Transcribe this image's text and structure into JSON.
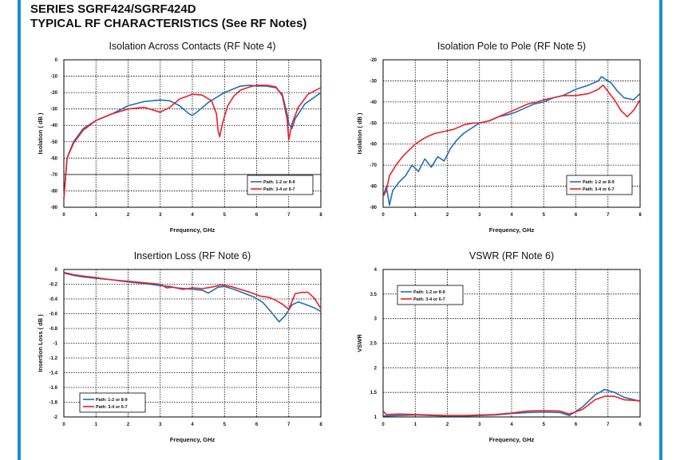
{
  "header": {
    "line1": "SERIES SGRF424/SGRF424D",
    "line2": "TYPICAL RF CHARACTERISTICS (See RF Notes)"
  },
  "colors": {
    "accent_bar": "#1a8fd4",
    "series_a": "#1f6fb3",
    "series_b": "#e8202a"
  },
  "chart_data": [
    {
      "type": "line",
      "title": "Isolation Across Contacts (RF Note 4)",
      "xlabel": "Frequency, GHz",
      "ylabel": "Isolation ( dB )",
      "xlim": [
        0,
        8
      ],
      "ylim": [
        -90,
        0
      ],
      "xticks": [
        "0",
        "1",
        "2",
        "3",
        "4",
        "5",
        "6",
        "7",
        "8"
      ],
      "yticks": [
        "0",
        "-10",
        "-20",
        "-30",
        "-40",
        "-50",
        "-60",
        "-70",
        "-80",
        "-90"
      ],
      "grid": true,
      "legend": "bottom-right",
      "series": [
        {
          "name": "Path: 1-2 or 8-9",
          "x": [
            0,
            0.1,
            0.3,
            0.6,
            1,
            1.5,
            2,
            2.5,
            3,
            3.3,
            3.6,
            3.9,
            4.0,
            4.2,
            4.5,
            5,
            5.5,
            5.8,
            6,
            6.3,
            6.6,
            6.8,
            6.95,
            7.0,
            7.1,
            7.2,
            7.5,
            8
          ],
          "y": [
            -85,
            -60,
            -50,
            -42,
            -37,
            -33,
            -28,
            -25.5,
            -24.5,
            -25,
            -28,
            -33,
            -34,
            -31,
            -26,
            -20,
            -16,
            -15.5,
            -16,
            -16,
            -17,
            -21,
            -33,
            -39,
            -42,
            -36,
            -27,
            -20
          ]
        },
        {
          "name": "Path:  3-4 or 6-7",
          "x": [
            0,
            0.1,
            0.3,
            0.6,
            1,
            1.5,
            2,
            2.5,
            3,
            3.3,
            3.6,
            4,
            4.3,
            4.6,
            4.75,
            4.8,
            4.85,
            4.95,
            5.1,
            5.3,
            5.5,
            5.8,
            6,
            6.3,
            6.6,
            6.8,
            6.95,
            7.0,
            7.1,
            7.3,
            7.6,
            8
          ],
          "y": [
            -85,
            -60,
            -51,
            -43,
            -37,
            -33,
            -30,
            -29,
            -32,
            -29,
            -24,
            -21,
            -21.5,
            -25,
            -33,
            -43,
            -47,
            -38,
            -28,
            -22,
            -18.5,
            -16.5,
            -15.5,
            -15.5,
            -16.5,
            -22,
            -36,
            -49,
            -39,
            -29,
            -21,
            -17
          ]
        }
      ]
    },
    {
      "type": "line",
      "title": "Isolation Pole to Pole (RF Note 5)",
      "xlabel": "Frequency, GHz",
      "ylabel": "Isolation ( dB )",
      "xlim": [
        0,
        8
      ],
      "ylim": [
        -90,
        -20
      ],
      "xticks": [
        "0",
        "1",
        "2",
        "3",
        "4",
        "5",
        "6",
        "7",
        "8"
      ],
      "yticks": [
        "-20",
        "-30",
        "-40",
        "-50",
        "-60",
        "-70",
        "-80",
        "-90"
      ],
      "grid": true,
      "legend": "bottom-right",
      "series": [
        {
          "name": "Path: 1-2 or 8-9",
          "x": [
            0,
            0.1,
            0.2,
            0.3,
            0.5,
            0.7,
            0.9,
            1.1,
            1.3,
            1.5,
            1.7,
            1.9,
            2.1,
            2.3,
            2.5,
            2.8,
            3,
            3.3,
            3.6,
            3.9,
            4.1,
            4.4,
            4.7,
            5,
            5.3,
            5.6,
            6,
            6.4,
            6.7,
            6.8,
            6.9,
            7.1,
            7.3,
            7.5,
            7.8,
            8
          ],
          "y": [
            -85,
            -80,
            -89,
            -82,
            -78,
            -75,
            -70,
            -73,
            -67,
            -71,
            -66,
            -68,
            -62,
            -58,
            -55,
            -52,
            -50,
            -49,
            -47,
            -46,
            -45,
            -43,
            -41,
            -40,
            -38,
            -37,
            -34,
            -32,
            -30,
            -28,
            -29,
            -31,
            -35,
            -38,
            -39,
            -36
          ]
        },
        {
          "name": "Path:  3-4 or 6-7",
          "x": [
            0,
            0.1,
            0.2,
            0.4,
            0.6,
            0.8,
            1,
            1.3,
            1.6,
            1.9,
            2.2,
            2.5,
            2.8,
            3,
            3.3,
            3.6,
            3.9,
            4.2,
            4.5,
            4.8,
            5,
            5.3,
            5.6,
            6,
            6.4,
            6.7,
            6.85,
            7,
            7.2,
            7.4,
            7.6,
            7.8,
            8
          ],
          "y": [
            -85,
            -82,
            -75,
            -70,
            -66,
            -63,
            -60,
            -57,
            -55,
            -54,
            -53,
            -51,
            -50,
            -50,
            -49,
            -47,
            -45,
            -43,
            -41,
            -40,
            -39,
            -38,
            -37,
            -37,
            -36,
            -34,
            -32,
            -35,
            -39,
            -44,
            -47,
            -44,
            -39
          ]
        }
      ]
    },
    {
      "type": "line",
      "title": "Insertion Loss (RF Note 6)",
      "xlabel": "Frequency, GHz",
      "ylabel": "Insertion Loss ( dB )",
      "xlim": [
        0,
        8
      ],
      "ylim": [
        -2,
        0
      ],
      "xticks": [
        "0",
        "1",
        "2",
        "3",
        "4",
        "5",
        "6",
        "7",
        "8"
      ],
      "yticks": [
        "0",
        "-0.2",
        "-0.4",
        "-0.6",
        "-0.8",
        "-1",
        "-1.2",
        "-1.4",
        "-1.6",
        "-1.8",
        "-2"
      ],
      "grid": true,
      "legend": "bottom-left",
      "series": [
        {
          "name": "Path: 1-2 or 8-9",
          "x": [
            0,
            0.3,
            0.6,
            1,
            1.5,
            2,
            2.5,
            3,
            3.3,
            3.5,
            3.8,
            4,
            4.3,
            4.5,
            4.8,
            5,
            5.3,
            5.6,
            5.9,
            6.2,
            6.5,
            6.7,
            6.9,
            7.1,
            7.3,
            7.5,
            7.8,
            8
          ],
          "y": [
            -0.05,
            -0.08,
            -0.1,
            -0.12,
            -0.14,
            -0.17,
            -0.19,
            -0.22,
            -0.23,
            -0.25,
            -0.26,
            -0.27,
            -0.28,
            -0.32,
            -0.24,
            -0.23,
            -0.27,
            -0.32,
            -0.37,
            -0.45,
            -0.6,
            -0.71,
            -0.62,
            -0.48,
            -0.44,
            -0.47,
            -0.52,
            -0.57
          ]
        },
        {
          "name": "Path:  3-4 or 6-7",
          "x": [
            0,
            0.3,
            0.6,
            1,
            1.5,
            2,
            2.5,
            3,
            3.2,
            3.4,
            3.7,
            4,
            4.3,
            4.6,
            4.9,
            5.2,
            5.5,
            5.8,
            6.1,
            6.4,
            6.6,
            6.8,
            7,
            7.2,
            7.4,
            7.6,
            7.8,
            8
          ],
          "y": [
            -0.04,
            -0.07,
            -0.09,
            -0.11,
            -0.14,
            -0.16,
            -0.18,
            -0.2,
            -0.25,
            -0.24,
            -0.27,
            -0.25,
            -0.26,
            -0.24,
            -0.21,
            -0.23,
            -0.27,
            -0.31,
            -0.36,
            -0.38,
            -0.42,
            -0.47,
            -0.54,
            -0.33,
            -0.31,
            -0.31,
            -0.39,
            -0.53
          ]
        }
      ]
    },
    {
      "type": "line",
      "title": "VSWR (RF Note 6)",
      "xlabel": "Frequency, GHz",
      "ylabel": "VSWR",
      "xlim": [
        0,
        8
      ],
      "ylim": [
        1,
        4
      ],
      "xticks": [
        "0",
        "1",
        "2",
        "3",
        "4",
        "5",
        "6",
        "7",
        "8"
      ],
      "yticks": [
        "4",
        "3.5",
        "3",
        "2.5",
        "2",
        "1.5",
        "1"
      ],
      "grid": true,
      "legend": "top-left",
      "series": [
        {
          "name": "Path: 1-2 or 8-9",
          "x": [
            0,
            0.5,
            1,
            1.5,
            2,
            2.5,
            3,
            3.5,
            4,
            4.5,
            5,
            5.5,
            5.8,
            6.2,
            6.6,
            6.9,
            7.2,
            7.5,
            8
          ],
          "y": [
            1.02,
            1.03,
            1.04,
            1.03,
            1.02,
            1.02,
            1.03,
            1.04,
            1.07,
            1.09,
            1.1,
            1.09,
            1.03,
            1.2,
            1.45,
            1.56,
            1.5,
            1.4,
            1.32
          ]
        },
        {
          "name": "Path:  3-4 or 6-7",
          "x": [
            0,
            0.1,
            0.5,
            1,
            1.5,
            2,
            2.5,
            3,
            3.5,
            4,
            4.5,
            5,
            5.5,
            5.8,
            6.2,
            6.6,
            6.9,
            7.2,
            7.5,
            8
          ],
          "y": [
            1.12,
            1.05,
            1.06,
            1.05,
            1.04,
            1.03,
            1.03,
            1.04,
            1.05,
            1.08,
            1.12,
            1.13,
            1.12,
            1.06,
            1.15,
            1.35,
            1.42,
            1.42,
            1.35,
            1.33
          ]
        }
      ]
    }
  ]
}
